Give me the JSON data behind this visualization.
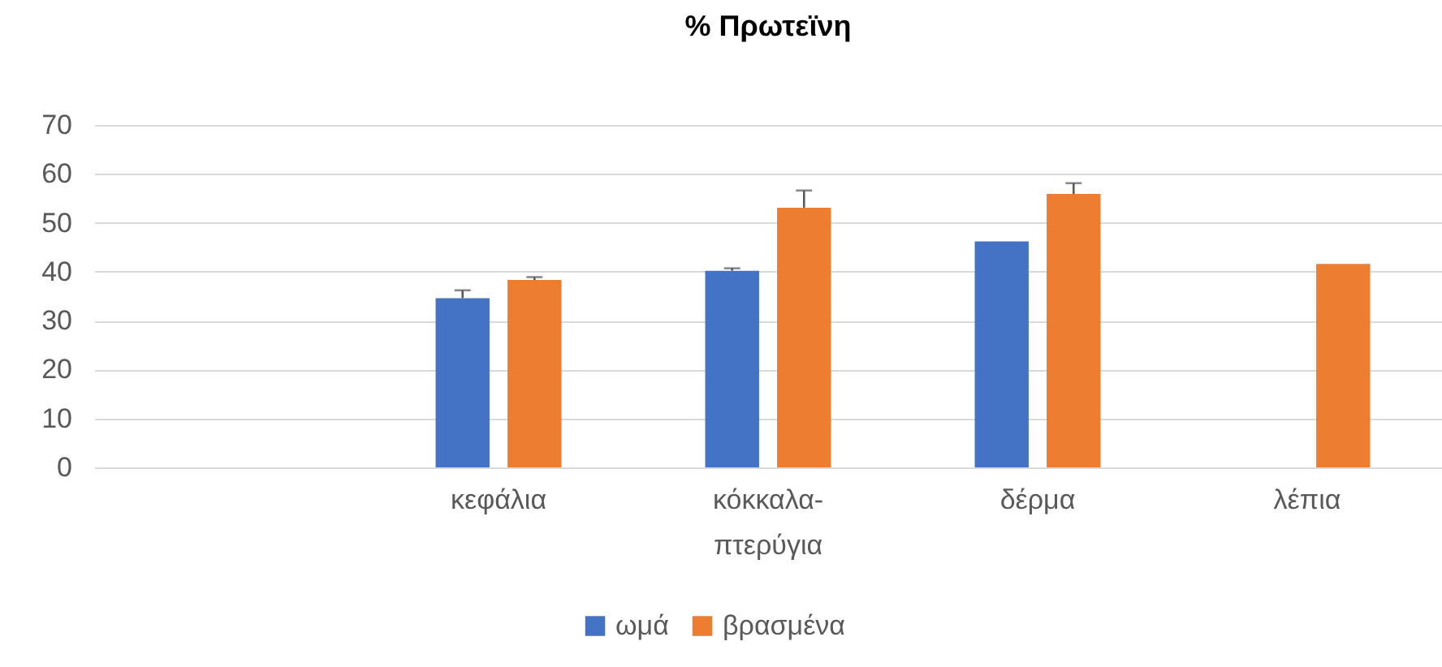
{
  "chart_data": {
    "type": "bar",
    "title": "%  Πρωτεϊνη",
    "categories": [
      null,
      "κεφάλια",
      "κόκκαλα-πτερύγια",
      "δέρμα",
      "λέπια"
    ],
    "series": [
      {
        "name": "ωμά",
        "color": "#4472c4",
        "values": [
          null,
          34.6,
          40.2,
          46.2,
          null
        ],
        "errors": [
          null,
          [
            34.6,
            36.2
          ],
          [
            40.2,
            40.7
          ],
          null,
          null
        ]
      },
      {
        "name": "βρασμένα",
        "color": "#ed7d31",
        "values": [
          null,
          38.3,
          53.1,
          55.9,
          41.6
        ],
        "errors": [
          null,
          [
            38.3,
            38.9
          ],
          [
            53.1,
            56.6
          ],
          [
            55.9,
            58.1
          ],
          null
        ]
      }
    ],
    "ylim": [
      0,
      70
    ],
    "yticks": [
      0,
      10,
      20,
      30,
      40,
      50,
      60,
      70
    ],
    "grid": "y",
    "legend": "bottom"
  }
}
